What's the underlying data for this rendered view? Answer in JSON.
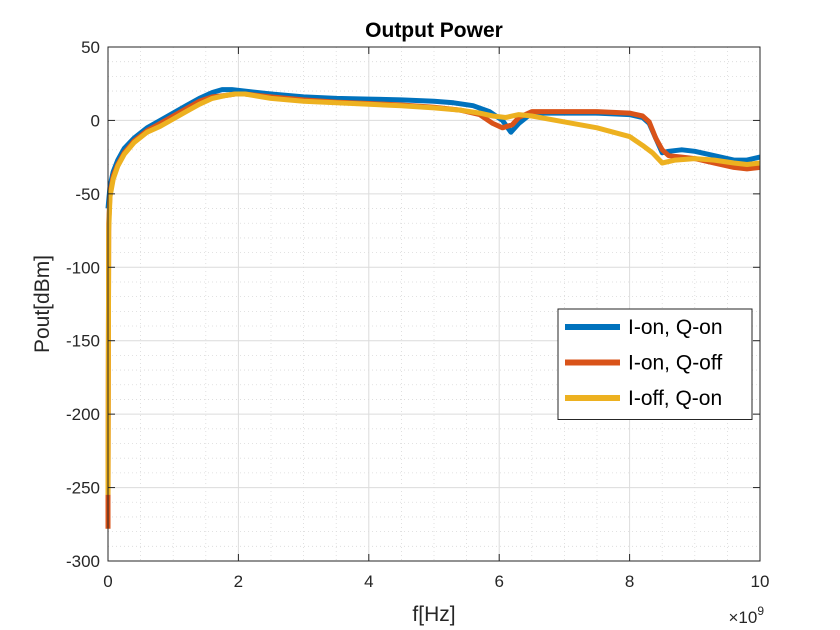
{
  "chart_data": {
    "type": "line",
    "title": "Output Power",
    "xlabel": "f[Hz]",
    "ylabel": "Pout[dBm]",
    "x_exponent_base": "×10",
    "x_exponent_power": "9",
    "xlim": [
      0,
      10
    ],
    "ylim": [
      -300,
      50
    ],
    "xticks": [
      0,
      2,
      4,
      6,
      8,
      10
    ],
    "yticks": [
      50,
      0,
      -50,
      -100,
      -150,
      -200,
      -250,
      -300
    ],
    "grid": true,
    "minor_grid": true,
    "legend_position": "right",
    "series": [
      {
        "name": "I-on, Q-on",
        "color": "#0072BD",
        "x": [
          0.0,
          0.03,
          0.08,
          0.15,
          0.25,
          0.4,
          0.6,
          0.8,
          1.0,
          1.2,
          1.4,
          1.6,
          1.75,
          1.9,
          2.1,
          2.5,
          3.0,
          3.5,
          4.0,
          4.5,
          5.0,
          5.3,
          5.6,
          5.85,
          6.05,
          6.18,
          6.3,
          6.5,
          7.0,
          7.5,
          8.0,
          8.2,
          8.3,
          8.4,
          8.5,
          8.6,
          8.8,
          9.0,
          9.3,
          9.6,
          9.8,
          10.0
        ],
        "y": [
          -60,
          -45,
          -35,
          -27,
          -19,
          -12,
          -5,
          0,
          5,
          10,
          15,
          19,
          21,
          21,
          20,
          18,
          16,
          15,
          14.5,
          14,
          13,
          12,
          10,
          6,
          0,
          -8,
          -2,
          5,
          5,
          5,
          4,
          2,
          -2,
          -12,
          -22,
          -21,
          -20,
          -21,
          -24,
          -27,
          -27,
          -25
        ]
      },
      {
        "name": "I-on, Q-off",
        "color": "#D95319",
        "x": [
          0.0,
          0.0,
          0.01,
          0.03,
          0.08,
          0.15,
          0.25,
          0.4,
          0.6,
          0.8,
          1.0,
          1.2,
          1.4,
          1.6,
          1.8,
          1.95,
          2.1,
          2.5,
          3.0,
          3.5,
          4.0,
          4.5,
          5.0,
          5.4,
          5.7,
          5.9,
          6.05,
          6.2,
          6.3,
          6.5,
          7.0,
          7.5,
          8.0,
          8.2,
          8.3,
          8.4,
          8.5,
          8.6,
          8.8,
          9.0,
          9.3,
          9.6,
          9.8,
          10.0
        ],
        "y": [
          -278,
          -260,
          -70,
          -50,
          -38,
          -30,
          -22,
          -14,
          -7,
          -2,
          3,
          8,
          13,
          16,
          17,
          18,
          18,
          16,
          14,
          12.5,
          11.5,
          10.5,
          9,
          7,
          4,
          -2,
          -5,
          -3,
          2,
          6,
          6,
          6,
          5,
          3,
          -1,
          -12,
          -20,
          -24,
          -25,
          -26,
          -29,
          -32,
          -33,
          -32
        ]
      },
      {
        "name": "I-off, Q-on",
        "color": "#EDB120",
        "x": [
          0.0,
          0.01,
          0.03,
          0.08,
          0.15,
          0.25,
          0.4,
          0.6,
          0.8,
          1.0,
          1.2,
          1.4,
          1.6,
          1.8,
          1.95,
          2.1,
          2.5,
          3.0,
          3.5,
          4.0,
          4.5,
          5.0,
          5.4,
          5.7,
          5.9,
          6.1,
          6.3,
          6.5,
          7.0,
          7.5,
          8.0,
          8.2,
          8.35,
          8.5,
          8.7,
          9.0,
          9.3,
          9.6,
          9.8,
          10.0
        ],
        "y": [
          -255,
          -75,
          -52,
          -40,
          -31,
          -23,
          -15,
          -8,
          -4,
          1,
          6,
          11,
          15,
          17,
          18,
          18,
          15,
          13,
          12,
          11,
          10,
          8.5,
          7,
          5,
          3,
          2,
          4,
          3,
          -1,
          -5,
          -11,
          -17,
          -22,
          -29,
          -27,
          -26,
          -27,
          -29,
          -30,
          -29
        ]
      }
    ]
  }
}
